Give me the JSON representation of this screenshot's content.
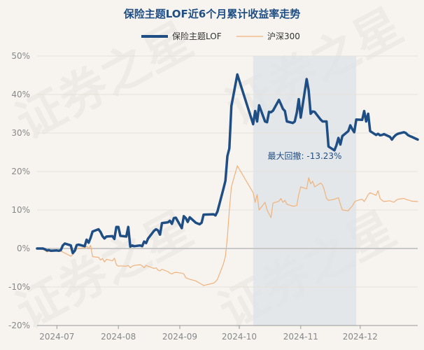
{
  "chart_data": {
    "type": "line",
    "title": "保险主题LOF近6个月累计收益率走势",
    "xlabel": "",
    "ylabel": "",
    "ylim": [
      -20,
      50
    ],
    "y_ticks": [
      -20,
      -10,
      0,
      10,
      20,
      30,
      40,
      50
    ],
    "y_tick_labels": [
      "-20%",
      "-10%",
      "0%",
      "10%",
      "20%",
      "30%",
      "40%",
      "50%"
    ],
    "x_ticks": [
      "2024-07-01",
      "2024-08-01",
      "2024-09-01",
      "2024-10-01",
      "2024-11-01",
      "2024-12-01"
    ],
    "x_tick_labels": [
      "2024-07",
      "2024-08",
      "2024-09",
      "2024-10",
      "2024-11",
      "2024-12"
    ],
    "x_range": [
      "2024-06-21",
      "2024-12-30"
    ],
    "grid": "horizontal",
    "legend_position": "top-center",
    "watermark": "证券之星",
    "colors": {
      "fund": "#1f4e84",
      "index": "#f0b27a",
      "drawdown_fill": "#dde3e8"
    },
    "drawdown": {
      "label": "最大回撤: -13.23%",
      "start": "2024-10-08",
      "end": "2024-11-29"
    },
    "series": [
      {
        "name": "保险主题LOF",
        "x": [
          "2024-06-21",
          "2024-06-24",
          "2024-06-25",
          "2024-06-26",
          "2024-06-27",
          "2024-06-28",
          "2024-07-01",
          "2024-07-02",
          "2024-07-03",
          "2024-07-04",
          "2024-07-05",
          "2024-07-08",
          "2024-07-09",
          "2024-07-10",
          "2024-07-11",
          "2024-07-12",
          "2024-07-15",
          "2024-07-16",
          "2024-07-17",
          "2024-07-18",
          "2024-07-19",
          "2024-07-22",
          "2024-07-23",
          "2024-07-24",
          "2024-07-25",
          "2024-07-26",
          "2024-07-29",
          "2024-07-30",
          "2024-07-31",
          "2024-08-01",
          "2024-08-02",
          "2024-08-05",
          "2024-08-06",
          "2024-08-07",
          "2024-08-08",
          "2024-08-09",
          "2024-08-12",
          "2024-08-13",
          "2024-08-14",
          "2024-08-15",
          "2024-08-16",
          "2024-08-19",
          "2024-08-20",
          "2024-08-21",
          "2024-08-22",
          "2024-08-23",
          "2024-08-26",
          "2024-08-27",
          "2024-08-28",
          "2024-08-29",
          "2024-08-30",
          "2024-09-02",
          "2024-09-03",
          "2024-09-04",
          "2024-09-05",
          "2024-09-06",
          "2024-09-09",
          "2024-09-10",
          "2024-09-11",
          "2024-09-12",
          "2024-09-13",
          "2024-09-18",
          "2024-09-19",
          "2024-09-20",
          "2024-09-23",
          "2024-09-24",
          "2024-09-25",
          "2024-09-26",
          "2024-09-27",
          "2024-09-30",
          "2024-10-08",
          "2024-10-09",
          "2024-10-10",
          "2024-10-11",
          "2024-10-14",
          "2024-10-15",
          "2024-10-16",
          "2024-10-17",
          "2024-10-18",
          "2024-10-21",
          "2024-10-22",
          "2024-10-23",
          "2024-10-24",
          "2024-10-25",
          "2024-10-28",
          "2024-10-29",
          "2024-10-30",
          "2024-10-31",
          "2024-11-01",
          "2024-11-04",
          "2024-11-05",
          "2024-11-06",
          "2024-11-07",
          "2024-11-08",
          "2024-11-11",
          "2024-11-12",
          "2024-11-13",
          "2024-11-14",
          "2024-11-15",
          "2024-11-18",
          "2024-11-19",
          "2024-11-20",
          "2024-11-21",
          "2024-11-22",
          "2024-11-25",
          "2024-11-26",
          "2024-11-27",
          "2024-11-28",
          "2024-11-29",
          "2024-12-02",
          "2024-12-03",
          "2024-12-04",
          "2024-12-05",
          "2024-12-06",
          "2024-12-09",
          "2024-12-10",
          "2024-12-11",
          "2024-12-12",
          "2024-12-13",
          "2024-12-16",
          "2024-12-17",
          "2024-12-18",
          "2024-12-19",
          "2024-12-20",
          "2024-12-23",
          "2024-12-24",
          "2024-12-25",
          "2024-12-26",
          "2024-12-27",
          "2024-12-30"
        ],
        "y": [
          0.0,
          0.0,
          -0.2,
          -0.5,
          -0.4,
          -0.6,
          -0.5,
          -0.6,
          -0.4,
          0.8,
          1.3,
          0.8,
          -1.2,
          -0.6,
          0.9,
          1.0,
          0.6,
          2.3,
          1.5,
          2.8,
          4.4,
          5.0,
          4.3,
          3.2,
          2.6,
          3.1,
          3.2,
          2.5,
          5.6,
          5.6,
          3.3,
          3.1,
          5.6,
          0.5,
          0.8,
          0.6,
          0.8,
          0.6,
          1.8,
          1.4,
          2.6,
          4.6,
          5.0,
          4.7,
          3.6,
          6.6,
          6.8,
          7.2,
          6.4,
          7.9,
          8.0,
          5.3,
          8.4,
          7.9,
          6.9,
          8.1,
          6.7,
          6.5,
          6.3,
          6.7,
          8.8,
          8.9,
          8.6,
          9.6,
          15.5,
          17.6,
          24.0,
          26.0,
          37.0,
          45.2,
          32.3,
          35.7,
          33.0,
          37.2,
          33.0,
          32.8,
          35.5,
          35.4,
          35.8,
          38.6,
          37.5,
          36.3,
          35.7,
          33.0,
          32.6,
          33.0,
          35.3,
          38.8,
          34.0,
          44.0,
          41.0,
          35.0,
          35.6,
          35.5,
          33.5,
          33.0,
          33.0,
          33.0,
          26.5,
          25.5,
          26.8,
          28.7,
          27.0,
          29.2,
          30.5,
          32.0,
          31.0,
          30.2,
          33.5,
          33.4,
          35.7,
          33.0,
          35.0,
          30.5,
          29.5,
          29.8,
          29.4,
          29.5,
          29.7,
          29.0,
          28.3,
          29.0,
          29.5,
          29.8,
          30.2,
          30.0,
          29.5,
          29.2,
          29.0,
          28.3
        ]
      },
      {
        "name": "沪深300",
        "x": [
          "2024-06-21",
          "2024-06-24",
          "2024-06-25",
          "2024-06-26",
          "2024-06-27",
          "2024-06-28",
          "2024-07-01",
          "2024-07-02",
          "2024-07-03",
          "2024-07-04",
          "2024-07-05",
          "2024-07-08",
          "2024-07-09",
          "2024-07-10",
          "2024-07-11",
          "2024-07-12",
          "2024-07-15",
          "2024-07-16",
          "2024-07-17",
          "2024-07-18",
          "2024-07-19",
          "2024-07-22",
          "2024-07-23",
          "2024-07-24",
          "2024-07-25",
          "2024-07-26",
          "2024-07-29",
          "2024-07-30",
          "2024-07-31",
          "2024-08-01",
          "2024-08-02",
          "2024-08-05",
          "2024-08-06",
          "2024-08-07",
          "2024-08-08",
          "2024-08-09",
          "2024-08-12",
          "2024-08-13",
          "2024-08-14",
          "2024-08-15",
          "2024-08-16",
          "2024-08-19",
          "2024-08-20",
          "2024-08-21",
          "2024-08-22",
          "2024-08-23",
          "2024-08-26",
          "2024-08-27",
          "2024-08-28",
          "2024-08-29",
          "2024-08-30",
          "2024-09-02",
          "2024-09-03",
          "2024-09-04",
          "2024-09-05",
          "2024-09-06",
          "2024-09-09",
          "2024-09-10",
          "2024-09-11",
          "2024-09-12",
          "2024-09-13",
          "2024-09-18",
          "2024-09-19",
          "2024-09-20",
          "2024-09-23",
          "2024-09-24",
          "2024-09-25",
          "2024-09-26",
          "2024-09-27",
          "2024-09-30",
          "2024-10-08",
          "2024-10-09",
          "2024-10-10",
          "2024-10-11",
          "2024-10-14",
          "2024-10-15",
          "2024-10-16",
          "2024-10-17",
          "2024-10-18",
          "2024-10-21",
          "2024-10-22",
          "2024-10-23",
          "2024-10-24",
          "2024-10-25",
          "2024-10-28",
          "2024-10-29",
          "2024-10-30",
          "2024-10-31",
          "2024-11-01",
          "2024-11-04",
          "2024-11-05",
          "2024-11-06",
          "2024-11-07",
          "2024-11-08",
          "2024-11-11",
          "2024-11-12",
          "2024-11-13",
          "2024-11-14",
          "2024-11-15",
          "2024-11-18",
          "2024-11-19",
          "2024-11-20",
          "2024-11-21",
          "2024-11-22",
          "2024-11-25",
          "2024-11-26",
          "2024-11-27",
          "2024-11-28",
          "2024-11-29",
          "2024-12-02",
          "2024-12-03",
          "2024-12-04",
          "2024-12-05",
          "2024-12-06",
          "2024-12-09",
          "2024-12-10",
          "2024-12-11",
          "2024-12-12",
          "2024-12-13",
          "2024-12-16",
          "2024-12-17",
          "2024-12-18",
          "2024-12-19",
          "2024-12-20",
          "2024-12-23",
          "2024-12-24",
          "2024-12-25",
          "2024-12-26",
          "2024-12-27",
          "2024-12-30"
        ],
        "y": [
          0.0,
          -0.3,
          -0.5,
          -0.9,
          -0.7,
          -0.8,
          -0.6,
          -0.5,
          -0.8,
          -0.9,
          -1.2,
          -2.0,
          -1.6,
          -0.9,
          -0.2,
          0.0,
          0.2,
          0.6,
          0.0,
          0.8,
          -2.1,
          -2.3,
          -3.0,
          -2.6,
          -3.5,
          -2.8,
          -3.2,
          -2.5,
          -4.2,
          -4.6,
          -4.5,
          -4.6,
          -4.4,
          -5.0,
          -4.6,
          -4.4,
          -4.2,
          -4.5,
          -5.0,
          -4.4,
          -4.6,
          -5.2,
          -5.0,
          -5.6,
          -5.8,
          -5.4,
          -6.0,
          -6.4,
          -6.6,
          -6.3,
          -6.2,
          -6.4,
          -6.6,
          -7.6,
          -7.8,
          -8.0,
          -8.4,
          -8.7,
          -9.0,
          -9.3,
          -9.6,
          -9.0,
          -8.6,
          -8.0,
          -4.0,
          -2.0,
          3.0,
          10.0,
          16.0,
          21.5,
          14.5,
          12.0,
          14.0,
          10.0,
          12.0,
          10.0,
          9.0,
          8.0,
          11.8,
          12.3,
          13.0,
          12.0,
          12.5,
          11.5,
          11.0,
          11.0,
          11.2,
          14.0,
          16.0,
          15.5,
          18.4,
          16.8,
          17.5,
          16.0,
          17.0,
          16.5,
          15.0,
          13.0,
          12.5,
          12.8,
          13.0,
          13.2,
          11.5,
          10.0,
          9.8,
          10.5,
          11.0,
          12.0,
          12.4,
          12.8,
          12.2,
          13.0,
          14.0,
          14.5,
          13.8,
          15.0,
          13.0,
          12.5,
          12.2,
          12.4,
          12.2,
          12.0,
          12.5,
          12.8,
          13.0,
          12.8,
          12.6,
          12.5,
          12.3,
          12.2
        ]
      }
    ]
  }
}
